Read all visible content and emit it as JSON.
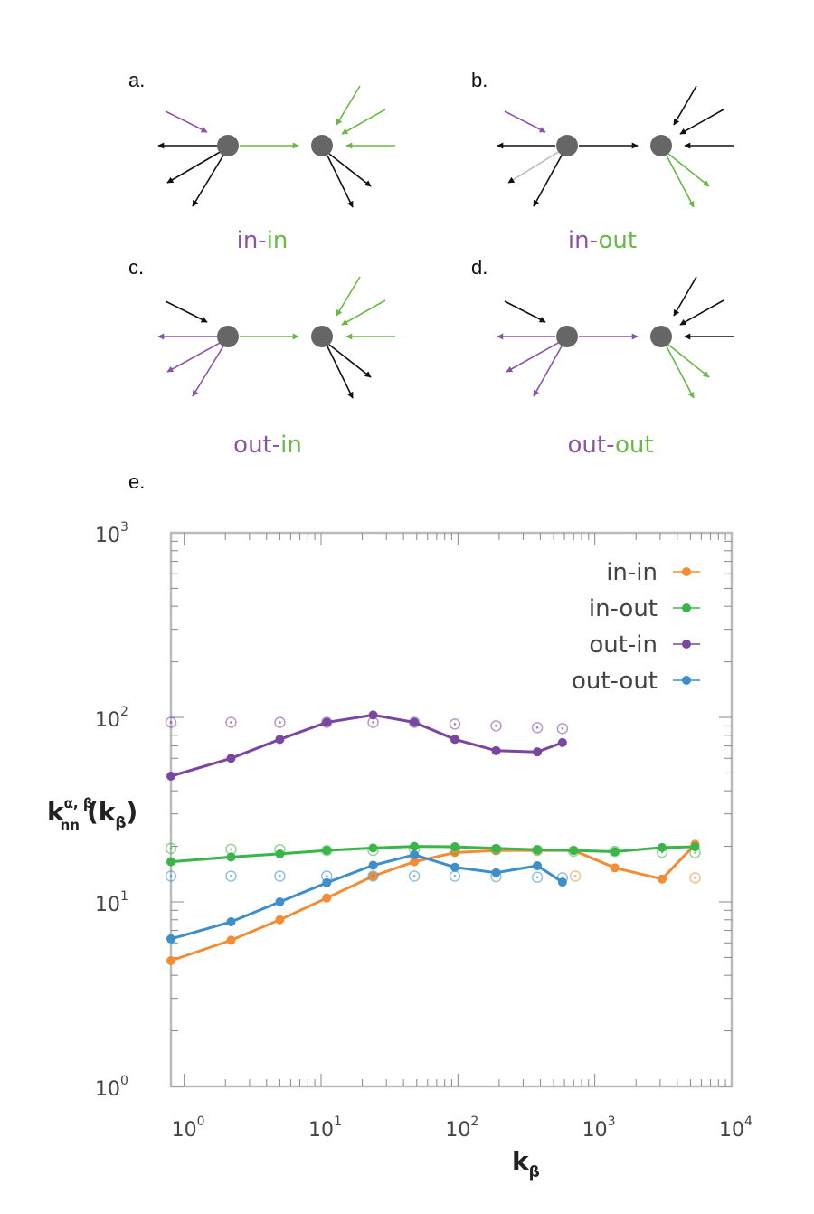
{
  "panels": {
    "a": {
      "label": "a.",
      "caption_left": "in",
      "caption_sep": "-",
      "caption_right": "in"
    },
    "b": {
      "label": "b.",
      "caption_left": "in",
      "caption_sep": "-",
      "caption_right": "out"
    },
    "c": {
      "label": "c.",
      "caption_left": "out",
      "caption_sep": "-",
      "caption_right": "in"
    },
    "d": {
      "label": "d.",
      "caption_left": "out",
      "caption_sep": "-",
      "caption_right": "out"
    },
    "e": {
      "label": "e."
    }
  },
  "colors": {
    "purple": "#8b55a6",
    "green": "#6ab845",
    "black": "#111111",
    "gray_light": "#bbbbbb",
    "node": "#666666",
    "in_in": "#f28d35",
    "in_out": "#3ab54a",
    "out_in": "#7a47a0",
    "out_out": "#3d8ecb",
    "axis": "#bbbbbb"
  },
  "chart_data": {
    "type": "line",
    "xscale": "log",
    "yscale": "log",
    "xlim": [
      0.8,
      10000
    ],
    "ylim": [
      1,
      1000
    ],
    "xlabel": {
      "main": "k",
      "sub": "β"
    },
    "ylabel": {
      "main": "k",
      "sup": "α, β",
      "sub": "nn",
      "tail": "(k",
      "tail_sub": "β",
      "tail_end": ")"
    },
    "xticks": [
      {
        "base": "10",
        "exp": "0",
        "value": 1
      },
      {
        "base": "10",
        "exp": "1",
        "value": 10
      },
      {
        "base": "10",
        "exp": "2",
        "value": 100
      },
      {
        "base": "10",
        "exp": "3",
        "value": 1000
      },
      {
        "base": "10",
        "exp": "4",
        "value": 10000
      }
    ],
    "yticks": [
      {
        "base": "10",
        "exp": "0",
        "value": 1
      },
      {
        "base": "10",
        "exp": "1",
        "value": 10
      },
      {
        "base": "10",
        "exp": "2",
        "value": 100
      },
      {
        "base": "10",
        "exp": "3",
        "value": 1000
      }
    ],
    "legend_position": "top-right",
    "series": [
      {
        "name": "in-in",
        "key": "in_in",
        "x": [
          0.8,
          2.2,
          5.0,
          11,
          24,
          48,
          95,
          190,
          380,
          700,
          1400,
          3100,
          5400
        ],
        "y": [
          4.8,
          6.2,
          8.0,
          10.5,
          13.8,
          16.5,
          18.5,
          19.0,
          19.0,
          19.0,
          15.3,
          13.3,
          20.5
        ],
        "null_x": [
          720,
          5400
        ],
        "null_y": [
          13.8,
          13.5
        ]
      },
      {
        "name": "in-out",
        "key": "in_out",
        "x": [
          0.8,
          2.2,
          5.0,
          11,
          24,
          48,
          95,
          190,
          380,
          700,
          1400,
          3100,
          5400
        ],
        "y": [
          16.5,
          17.5,
          18.2,
          19.0,
          19.6,
          20.0,
          19.9,
          19.5,
          19.2,
          19.0,
          18.7,
          19.7,
          19.9
        ],
        "null_x": [
          0.8,
          2.2,
          5.0,
          11,
          24,
          48,
          95,
          190,
          380,
          700,
          1400,
          3100,
          5400
        ],
        "null_y": [
          19.5,
          19.3,
          19.2,
          19.0,
          19.0,
          19.3,
          19.3,
          19.2,
          19.0,
          18.8,
          18.8,
          18.6,
          18.5
        ]
      },
      {
        "name": "out-in",
        "key": "out_in",
        "x": [
          0.8,
          2.2,
          5.0,
          11,
          24,
          48,
          95,
          190,
          380,
          580
        ],
        "y": [
          48,
          60,
          76,
          94,
          103,
          94,
          76,
          66,
          65,
          73
        ],
        "null_x": [
          0.8,
          2.2,
          5.0,
          11,
          24,
          48,
          95,
          190,
          380,
          580
        ],
        "null_y": [
          94,
          94,
          94,
          94,
          94,
          94,
          92,
          90,
          88,
          87
        ]
      },
      {
        "name": "out-out",
        "key": "out_out",
        "x": [
          0.8,
          2.2,
          5.0,
          11,
          24,
          48,
          95,
          190,
          380,
          580
        ],
        "y": [
          6.3,
          7.8,
          10.0,
          12.7,
          15.8,
          18.0,
          15.4,
          14.4,
          15.7,
          12.8
        ],
        "null_x": [
          0.8,
          2.2,
          5.0,
          11,
          24,
          48,
          95,
          190,
          380,
          580
        ],
        "null_y": [
          13.8,
          13.8,
          13.8,
          13.8,
          13.8,
          13.8,
          13.8,
          13.7,
          13.6,
          13.5
        ]
      }
    ]
  }
}
